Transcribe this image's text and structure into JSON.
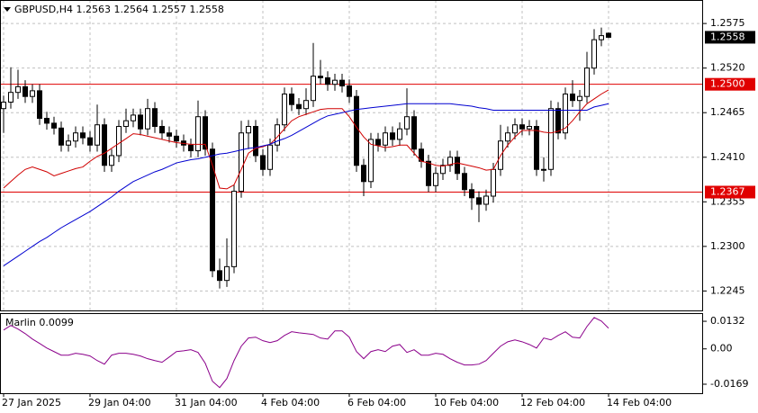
{
  "chart_data": [
    {
      "type": "candlestick",
      "title": "GBPUSD,H4 1.2563 1.2564 1.2557 1.2558",
      "categories": [
        "27 Jan 2025",
        null,
        null,
        null,
        null,
        null,
        null,
        null,
        null,
        null,
        null,
        null,
        "29 Jan 04:00",
        null,
        null,
        null,
        null,
        null,
        null,
        null,
        null,
        null,
        null,
        null,
        "31 Jan 04:00",
        null,
        null,
        null,
        null,
        null,
        null,
        null,
        null,
        null,
        null,
        null,
        "4 Feb 04:00",
        null,
        null,
        null,
        null,
        null,
        null,
        null,
        null,
        null,
        null,
        null,
        "6 Feb 04:00",
        null,
        null,
        null,
        null,
        null,
        null,
        null,
        null,
        null,
        null,
        null,
        "10 Feb 04:00",
        null,
        null,
        null,
        null,
        null,
        null,
        null,
        null,
        null,
        null,
        null,
        "12 Feb 04:00",
        null,
        null,
        null,
        null,
        null,
        null,
        null,
        null,
        null,
        null,
        null,
        "14 Feb 04:00"
      ],
      "open": [
        1.247,
        1.2478,
        1.249,
        1.2497,
        1.2485,
        1.2492,
        1.2458,
        1.2452,
        1.2446,
        1.2425,
        1.243,
        1.244,
        1.2434,
        1.2425,
        1.245,
        1.24,
        1.2412,
        1.2448,
        1.2455,
        1.2462,
        1.2445,
        1.247,
        1.2448,
        1.244,
        1.2436,
        1.243,
        1.2425,
        1.2418,
        1.246,
        1.242,
        1.227,
        1.2258,
        1.2275,
        1.2368,
        1.244,
        1.2448,
        1.2412,
        1.2395,
        1.2425,
        1.245,
        1.2488,
        1.2475,
        1.247,
        1.248,
        1.251,
        1.2508,
        1.25,
        1.2505,
        1.2498,
        1.2485,
        1.24,
        1.238,
        1.2432,
        1.2425,
        1.244,
        1.2432,
        1.2445,
        1.246,
        1.242,
        1.2405,
        1.2375,
        1.239,
        1.24,
        1.241,
        1.239,
        1.237,
        1.236,
        1.2352,
        1.2362,
        1.2395,
        1.243,
        1.244,
        1.245,
        1.2445,
        1.2448,
        1.2395,
        1.2395,
        1.247,
        1.244,
        1.2488,
        1.248,
        1.2485,
        1.252,
        1.2555,
        1.2563
      ],
      "high": [
        1.2486,
        1.2521,
        1.2518,
        1.2505,
        1.25,
        1.25,
        1.2466,
        1.246,
        1.2454,
        1.2438,
        1.2448,
        1.2448,
        1.2442,
        1.2475,
        1.2458,
        1.242,
        1.2456,
        1.247,
        1.247,
        1.247,
        1.2482,
        1.2478,
        1.2456,
        1.2448,
        1.2444,
        1.2438,
        1.2433,
        1.248,
        1.2468,
        1.2428,
        1.2285,
        1.231,
        1.2376,
        1.2455,
        1.2456,
        1.2456,
        1.242,
        1.2433,
        1.2458,
        1.2496,
        1.2496,
        1.2483,
        1.2495,
        1.2551,
        1.253,
        1.2516,
        1.2513,
        1.2513,
        1.2506,
        1.2493,
        1.2408,
        1.244,
        1.244,
        1.2448,
        1.2448,
        1.2453,
        1.2495,
        1.2468,
        1.2428,
        1.2413,
        1.2398,
        1.2408,
        1.2418,
        1.2418,
        1.2398,
        1.2378,
        1.2368,
        1.237,
        1.2403,
        1.245,
        1.2448,
        1.2458,
        1.2458,
        1.2456,
        1.2456,
        1.241,
        1.248,
        1.2478,
        1.2496,
        1.2505,
        1.2493,
        1.254,
        1.2568,
        1.257,
        1.2564
      ],
      "low": [
        1.244,
        1.247,
        1.2482,
        1.2477,
        1.2477,
        1.245,
        1.2444,
        1.2438,
        1.2417,
        1.2417,
        1.2422,
        1.2426,
        1.2417,
        1.2417,
        1.2392,
        1.2392,
        1.2404,
        1.244,
        1.2447,
        1.2437,
        1.2437,
        1.244,
        1.2432,
        1.2428,
        1.2422,
        1.2417,
        1.241,
        1.241,
        1.2412,
        1.2262,
        1.2248,
        1.225,
        1.2267,
        1.236,
        1.242,
        1.2404,
        1.2387,
        1.2387,
        1.2417,
        1.2442,
        1.2467,
        1.2462,
        1.2462,
        1.2472,
        1.25,
        1.2492,
        1.2492,
        1.249,
        1.2477,
        1.2392,
        1.2362,
        1.2372,
        1.2417,
        1.2417,
        1.2424,
        1.2424,
        1.2437,
        1.2412,
        1.2397,
        1.2367,
        1.2367,
        1.2382,
        1.2392,
        1.2382,
        1.2362,
        1.2345,
        1.233,
        1.2344,
        1.2354,
        1.2387,
        1.2422,
        1.2432,
        1.2437,
        1.2437,
        1.2387,
        1.238,
        1.2387,
        1.2432,
        1.2432,
        1.2472,
        1.2455,
        1.2477,
        1.2512,
        1.2547,
        1.2557
      ],
      "close": [
        1.2478,
        1.249,
        1.2497,
        1.2485,
        1.2492,
        1.2458,
        1.2452,
        1.2446,
        1.2425,
        1.243,
        1.244,
        1.2434,
        1.2425,
        1.245,
        1.24,
        1.2412,
        1.2448,
        1.2455,
        1.2462,
        1.2445,
        1.247,
        1.2448,
        1.244,
        1.2436,
        1.243,
        1.2425,
        1.2418,
        1.246,
        1.242,
        1.227,
        1.2258,
        1.2275,
        1.2368,
        1.244,
        1.2448,
        1.2412,
        1.2395,
        1.2425,
        1.245,
        1.2488,
        1.2475,
        1.247,
        1.248,
        1.251,
        1.2508,
        1.25,
        1.2505,
        1.2498,
        1.2485,
        1.24,
        1.238,
        1.2432,
        1.2425,
        1.244,
        1.2432,
        1.2445,
        1.246,
        1.242,
        1.2405,
        1.2375,
        1.239,
        1.24,
        1.241,
        1.239,
        1.237,
        1.236,
        1.2352,
        1.2362,
        1.2395,
        1.243,
        1.244,
        1.245,
        1.2445,
        1.2448,
        1.2395,
        1.2395,
        1.247,
        1.244,
        1.2488,
        1.248,
        1.2485,
        1.252,
        1.2555,
        1.256,
        1.2558
      ],
      "up_color": "#ffffff",
      "down_color": "#000000",
      "series": [
        {
          "color": "#d00000",
          "values": [
            1.2372,
            1.238,
            1.2388,
            1.2395,
            1.2398,
            1.2395,
            1.2392,
            1.2387,
            1.239,
            1.2393,
            1.2396,
            1.2398,
            1.2405,
            1.2411,
            1.2415,
            1.2421,
            1.2427,
            1.2433,
            1.2439,
            1.2438,
            1.2436,
            1.2434,
            1.2432,
            1.243,
            1.2428,
            1.2427,
            1.2426,
            1.2426,
            1.2426,
            1.24,
            1.2372,
            1.2371,
            1.2376,
            1.2395,
            1.2415,
            1.2421,
            1.2423,
            1.2426,
            1.2435,
            1.2445,
            1.2455,
            1.246,
            1.2463,
            1.2466,
            1.2469,
            1.247,
            1.247,
            1.247,
            1.246,
            1.2447,
            1.2435,
            1.2426,
            1.2424,
            1.2422,
            1.2423,
            1.2425,
            1.2425,
            1.2415,
            1.2405,
            1.2403,
            1.24,
            1.2399,
            1.2401,
            1.2403,
            1.2401,
            1.2399,
            1.2397,
            1.2394,
            1.2395,
            1.2412,
            1.2425,
            1.2435,
            1.2443,
            1.2443,
            1.2443,
            1.2441,
            1.244,
            1.2442,
            1.2446,
            1.2455,
            1.2466,
            1.2476,
            1.2482,
            1.2488,
            1.2493
          ]
        },
        {
          "color": "#0000d0",
          "values": [
            1.2276,
            1.2282,
            1.2288,
            1.2294,
            1.23,
            1.2306,
            1.2311,
            1.2317,
            1.2323,
            1.2328,
            1.2333,
            1.2338,
            1.2343,
            1.2349,
            1.2355,
            1.2361,
            1.2368,
            1.2374,
            1.238,
            1.2384,
            1.2388,
            1.2392,
            1.2395,
            1.2399,
            1.2403,
            1.2405,
            1.2407,
            1.2408,
            1.241,
            1.2412,
            1.2414,
            1.2415,
            1.2417,
            1.2419,
            1.2421,
            1.2422,
            1.2424,
            1.2426,
            1.243,
            1.2433,
            1.2437,
            1.2442,
            1.2447,
            1.2452,
            1.2457,
            1.2461,
            1.2463,
            1.2465,
            1.2467,
            1.2469,
            1.247,
            1.2471,
            1.2472,
            1.2473,
            1.2474,
            1.2475,
            1.2476,
            1.2476,
            1.2476,
            1.2476,
            1.2476,
            1.2476,
            1.2476,
            1.2475,
            1.2474,
            1.2473,
            1.2471,
            1.247,
            1.2468,
            1.2468,
            1.2468,
            1.2468,
            1.2468,
            1.2468,
            1.2468,
            1.2468,
            1.2468,
            1.2468,
            1.2468,
            1.2468,
            1.2468,
            1.2468,
            1.2472,
            1.2474,
            1.2476
          ]
        }
      ],
      "levels": [
        {
          "value": 1.25,
          "label": "1.2500"
        },
        1.2367
      ],
      "level_color": "#e00000",
      "price_label": 1.2558,
      "ylim": [
        1.2221,
        1.2604
      ],
      "yticks": [
        1.2575,
        {
          "value": 1.252,
          "label": "1.2520"
        },
        1.2465,
        {
          "value": 1.241,
          "label": "1.2410"
        },
        1.2355,
        {
          "value": 1.23,
          "label": "1.2300"
        },
        1.2245
      ],
      "grid": true
    },
    {
      "type": "line",
      "title": "Marlin 0.0099",
      "series": [
        {
          "color": "#8b008b",
          "values": [
            0.009,
            0.0112,
            0.0095,
            0.0073,
            0.0047,
            0.0026,
            0.0004,
            -0.0013,
            -0.003,
            -0.003,
            -0.0021,
            -0.0026,
            -0.0034,
            -0.0056,
            -0.0073,
            -0.003,
            -0.0021,
            -0.0021,
            -0.0026,
            -0.0034,
            -0.0047,
            -0.0056,
            -0.0064,
            -0.0039,
            -0.0013,
            -0.0009,
            -0.0004,
            -0.0017,
            -0.0069,
            -0.0155,
            -0.0185,
            -0.0142,
            -0.0056,
            0.0013,
            0.0052,
            0.0056,
            0.0039,
            0.003,
            0.0039,
            0.0064,
            0.0082,
            0.0077,
            0.0073,
            0.0069,
            0.0052,
            0.0047,
            0.0086,
            0.0086,
            0.0056,
            -0.0013,
            -0.0047,
            -0.0013,
            -0.0004,
            -0.0013,
            0.0013,
            0.0021,
            -0.0017,
            -0.0004,
            -0.003,
            -0.003,
            -0.0021,
            -0.0026,
            -0.0047,
            -0.0064,
            -0.0077,
            -0.0077,
            -0.0073,
            -0.0056,
            -0.0021,
            0.0013,
            0.0034,
            0.0043,
            0.0034,
            0.0021,
            0.0004,
            0.0052,
            0.0043,
            0.0064,
            0.0082,
            0.0056,
            0.0052,
            0.0107,
            0.015,
            0.0133,
            0.0099
          ]
        }
      ],
      "ylim": [
        -0.0212,
        0.0171
      ],
      "yticks": [
        0.0132,
        {
          "value": 0,
          "label": "0.00"
        },
        -0.0169
      ],
      "grid": false
    }
  ]
}
